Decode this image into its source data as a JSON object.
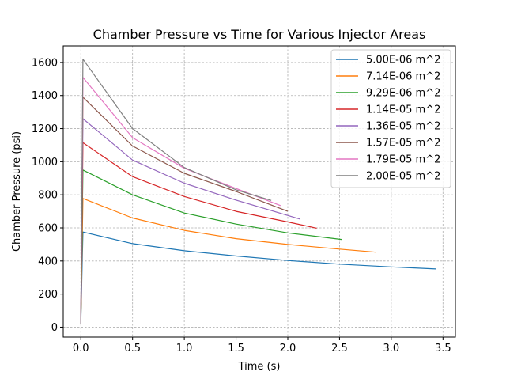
{
  "chart_data": {
    "type": "line",
    "title": "Chamber Pressure vs Time for Various Injector Areas",
    "xlabel": "Time (s)",
    "ylabel": "Chamber Pressure (psi)",
    "xlim": [
      -0.17,
      3.62
    ],
    "ylim": [
      -60,
      1700
    ],
    "xticks": [
      0.0,
      0.5,
      1.0,
      1.5,
      2.0,
      2.5,
      3.0,
      3.5
    ],
    "xtick_labels": [
      "0.0",
      "0.5",
      "1.0",
      "1.5",
      "2.0",
      "2.5",
      "3.0",
      "3.5"
    ],
    "yticks": [
      0,
      200,
      400,
      600,
      800,
      1000,
      1200,
      1400,
      1600
    ],
    "ytick_labels": [
      "0",
      "200",
      "400",
      "600",
      "800",
      "1000",
      "1200",
      "1400",
      "1600"
    ],
    "grid": true,
    "legend_position": "top-right",
    "series": [
      {
        "name": "5.00E-06 m^2",
        "color": "#1f77b4",
        "x": [
          0.0,
          0.02,
          0.5,
          1.0,
          1.5,
          2.0,
          2.5,
          3.0,
          3.43
        ],
        "y": [
          20,
          575,
          505,
          462,
          430,
          403,
          381,
          364,
          352
        ]
      },
      {
        "name": "7.14E-06 m^2",
        "color": "#ff7f0e",
        "x": [
          0.0,
          0.02,
          0.5,
          1.0,
          1.5,
          2.0,
          2.5,
          2.85
        ],
        "y": [
          20,
          778,
          660,
          585,
          535,
          500,
          472,
          453
        ]
      },
      {
        "name": "9.29E-06 m^2",
        "color": "#2ca02c",
        "x": [
          0.0,
          0.02,
          0.5,
          1.0,
          1.5,
          2.0,
          2.52
        ],
        "y": [
          20,
          950,
          800,
          690,
          623,
          570,
          530
        ]
      },
      {
        "name": "1.14E-05 m^2",
        "color": "#d62728",
        "x": [
          0.0,
          0.02,
          0.5,
          1.0,
          1.5,
          2.0,
          2.28
        ],
        "y": [
          20,
          1115,
          910,
          790,
          700,
          636,
          598
        ]
      },
      {
        "name": "1.36E-05 m^2",
        "color": "#9467bd",
        "x": [
          0.0,
          0.02,
          0.5,
          1.0,
          1.5,
          2.12
        ],
        "y": [
          20,
          1260,
          1010,
          870,
          768,
          653
        ]
      },
      {
        "name": "1.57E-05 m^2",
        "color": "#8c564b",
        "x": [
          0.0,
          0.02,
          0.5,
          1.0,
          1.5,
          2.0
        ],
        "y": [
          20,
          1390,
          1095,
          930,
          820,
          700
        ]
      },
      {
        "name": "1.79E-05 m^2",
        "color": "#e377c2",
        "x": [
          0.0,
          0.02,
          0.5,
          1.0,
          1.5,
          1.93
        ],
        "y": [
          20,
          1510,
          1145,
          960,
          838,
          735
        ]
      },
      {
        "name": "2.00E-05 m^2",
        "color": "#7f7f7f",
        "x": [
          0.0,
          0.02,
          0.5,
          1.0,
          1.5,
          1.84
        ],
        "y": [
          20,
          1620,
          1200,
          965,
          830,
          766
        ]
      }
    ]
  }
}
